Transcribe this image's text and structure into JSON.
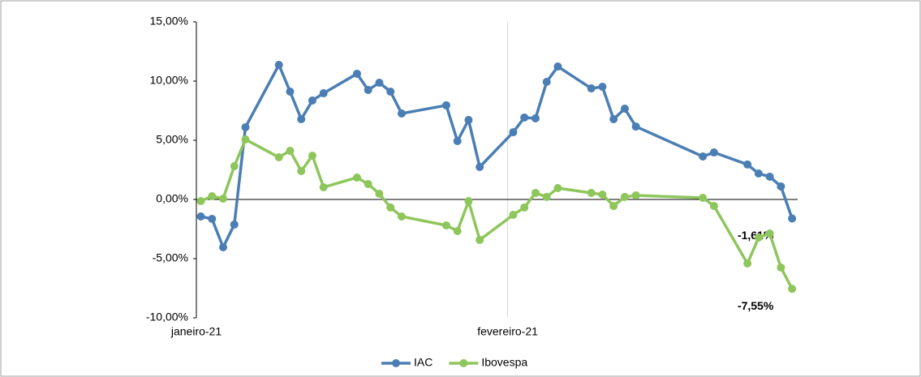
{
  "chart_data": {
    "type": "line",
    "x": [
      0,
      1,
      2,
      3,
      4,
      7,
      8,
      9,
      10,
      11,
      14,
      15,
      16,
      17,
      18,
      22,
      23,
      24,
      25,
      28,
      29,
      30,
      31,
      32,
      35,
      36,
      37,
      38,
      39,
      45,
      46,
      49,
      50,
      51,
      52,
      53
    ],
    "series": [
      {
        "name": "IAC",
        "color": "#4a7eb4",
        "values": [
          -1.44,
          -1.64,
          -4.04,
          -2.12,
          6.1,
          11.37,
          9.11,
          6.78,
          8.36,
          8.97,
          10.62,
          9.25,
          9.86,
          9.11,
          7.26,
          7.95,
          4.93,
          6.71,
          2.74,
          5.68,
          6.92,
          6.85,
          9.93,
          11.23,
          9.38,
          9.52,
          6.78,
          7.67,
          6.16,
          3.63,
          3.97,
          2.95,
          2.19,
          1.92,
          1.1,
          -1.61
        ],
        "value_labels": [
          null,
          null,
          null,
          null,
          null,
          null,
          null,
          null,
          null,
          null,
          null,
          null,
          null,
          null,
          null,
          null,
          null,
          null,
          null,
          null,
          null,
          null,
          null,
          null,
          null,
          null,
          null,
          null,
          null,
          null,
          null,
          null,
          null,
          null,
          null,
          "-1,61%"
        ]
      },
      {
        "name": "Ibovespa",
        "color": "#8ec65c",
        "values": [
          -0.14,
          0.27,
          0.07,
          2.81,
          5.07,
          3.56,
          4.11,
          2.4,
          3.7,
          1.03,
          1.85,
          1.3,
          0.48,
          -0.68,
          -1.44,
          -2.19,
          -2.67,
          -0.14,
          -3.42,
          -1.3,
          -0.68,
          0.55,
          0.21,
          0.96,
          0.55,
          0.41,
          -0.55,
          0.21,
          0.34,
          0.14,
          -0.55,
          -5.41,
          -3.22,
          -2.88,
          -5.75,
          -7.55
        ],
        "value_labels": [
          null,
          null,
          null,
          null,
          null,
          null,
          null,
          null,
          null,
          null,
          null,
          null,
          null,
          null,
          null,
          null,
          null,
          null,
          null,
          null,
          null,
          null,
          null,
          null,
          null,
          null,
          null,
          null,
          null,
          null,
          null,
          null,
          null,
          null,
          null,
          "-7,55%"
        ]
      }
    ],
    "xlim": [
      -0.4,
      53.5
    ],
    "xticks": [
      {
        "value": -0.4,
        "label": "janeiro-21"
      },
      {
        "value": 27.5,
        "label": "fevereiro-21"
      }
    ],
    "ylim": [
      -10,
      15
    ],
    "yticks": [
      {
        "value": -10,
        "label": "-10,00%"
      },
      {
        "value": -5,
        "label": "-5,00%"
      },
      {
        "value": 0,
        "label": "0,00%"
      },
      {
        "value": 5,
        "label": "5,00%"
      },
      {
        "value": 10,
        "label": "10,00%"
      },
      {
        "value": 15,
        "label": "15,00%"
      }
    ],
    "negative_color": "#e8312a",
    "vertical_grid": true,
    "legend": "bottom"
  }
}
